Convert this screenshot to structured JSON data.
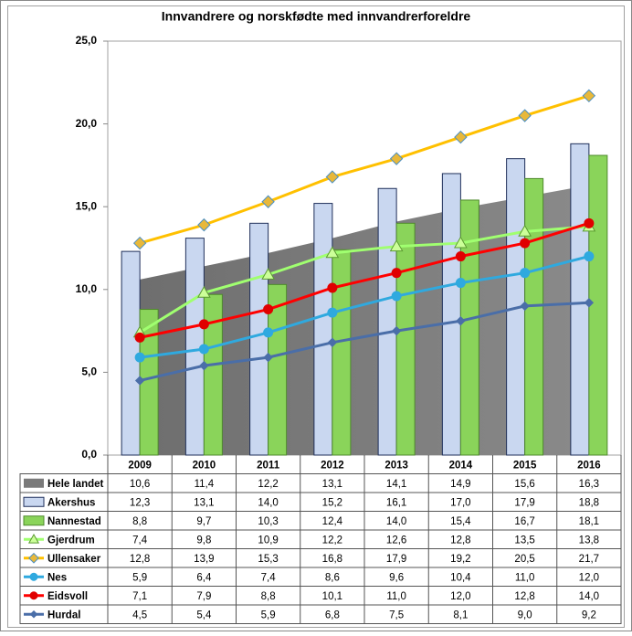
{
  "chart_data": {
    "type": "combo",
    "title": "Innvandrere og norskfødte med innvandrerforeldre",
    "categories": [
      "2009",
      "2010",
      "2011",
      "2012",
      "2013",
      "2014",
      "2015",
      "2016"
    ],
    "ylim": [
      0,
      25
    ],
    "yticks": [
      {
        "value": 0,
        "label": "0,0"
      },
      {
        "value": 5,
        "label": "5,0"
      },
      {
        "value": 10,
        "label": "10,0"
      },
      {
        "value": 15,
        "label": "15,0"
      },
      {
        "value": 20,
        "label": "20,0"
      },
      {
        "value": 25,
        "label": "25,0"
      }
    ],
    "series": [
      {
        "name": "Hele landet",
        "type": "area",
        "color": "#808080",
        "values": [
          10.6,
          11.4,
          12.2,
          13.1,
          14.1,
          14.9,
          15.6,
          16.3
        ],
        "value_labels": [
          "10,6",
          "11,4",
          "12,2",
          "13,1",
          "14,1",
          "14,9",
          "15,6",
          "16,3"
        ]
      },
      {
        "name": "Akershus",
        "type": "bar",
        "color": "#c9d7f0",
        "edge": "#1f2f5a",
        "values": [
          12.3,
          13.1,
          14.0,
          15.2,
          16.1,
          17.0,
          17.9,
          18.8
        ],
        "value_labels": [
          "12,3",
          "13,1",
          "14,0",
          "15,2",
          "16,1",
          "17,0",
          "17,9",
          "18,8"
        ]
      },
      {
        "name": "Nannestad",
        "type": "bar",
        "color": "#8ad45a",
        "edge": "#4f8a2c",
        "values": [
          8.8,
          9.7,
          10.3,
          12.4,
          14.0,
          15.4,
          16.7,
          18.1
        ],
        "value_labels": [
          "8,8",
          "9,7",
          "10,3",
          "12,4",
          "14,0",
          "15,4",
          "16,7",
          "18,1"
        ]
      },
      {
        "name": "Gjerdrum",
        "type": "line",
        "marker": "triangle",
        "color": "#a0ff70",
        "marker_color": "#ccff99",
        "marker_edge": "#5a9a30",
        "values": [
          7.4,
          9.8,
          10.9,
          12.2,
          12.6,
          12.8,
          13.5,
          13.8
        ],
        "value_labels": [
          "7,4",
          "9,8",
          "10,9",
          "12,2",
          "12,6",
          "12,8",
          "13,5",
          "13,8"
        ]
      },
      {
        "name": "Ullensaker",
        "type": "line",
        "marker": "diamond",
        "color": "#ffc000",
        "marker_color": "#e8b83a",
        "marker_edge": "#4a8fc4",
        "values": [
          12.8,
          13.9,
          15.3,
          16.8,
          17.9,
          19.2,
          20.5,
          21.7
        ],
        "value_labels": [
          "12,8",
          "13,9",
          "15,3",
          "16,8",
          "17,9",
          "19,2",
          "20,5",
          "21,7"
        ]
      },
      {
        "name": "Nes",
        "type": "line",
        "marker": "circle",
        "color": "#2fa9df",
        "marker_color": "#2fa9df",
        "marker_edge": "#2fa9df",
        "values": [
          5.9,
          6.4,
          7.4,
          8.6,
          9.6,
          10.4,
          11.0,
          12.0
        ],
        "value_labels": [
          "5,9",
          "6,4",
          "7,4",
          "8,6",
          "9,6",
          "10,4",
          "11,0",
          "12,0"
        ]
      },
      {
        "name": "Eidsvoll",
        "type": "line",
        "marker": "circle",
        "color": "#ff0000",
        "marker_color": "#e00000",
        "marker_edge": "#e00000",
        "values": [
          7.1,
          7.9,
          8.8,
          10.1,
          11.0,
          12.0,
          12.8,
          14.0
        ],
        "value_labels": [
          "7,1",
          "7,9",
          "8,8",
          "10,1",
          "11,0",
          "12,0",
          "12,8",
          "14,0"
        ]
      },
      {
        "name": "Hurdal",
        "type": "line",
        "marker": "small-diamond",
        "color": "#4a6ea8",
        "marker_color": "#4a6ea8",
        "marker_edge": "#4a6ea8",
        "values": [
          4.5,
          5.4,
          5.9,
          6.8,
          7.5,
          8.1,
          9.0,
          9.2
        ],
        "value_labels": [
          "4,5",
          "5,4",
          "5,9",
          "6,8",
          "7,5",
          "8,1",
          "9,0",
          "9,2"
        ]
      }
    ]
  }
}
